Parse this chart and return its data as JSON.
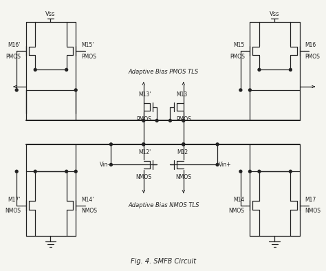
{
  "bg_color": "#f5f5f0",
  "line_color": "#555555",
  "dark_color": "#222222",
  "title": "Fig. 4. SMFB Circuit",
  "adaptive_pmos_label": "Adaptive Bias PMOS TLS",
  "adaptive_nmos_label": "Adaptive Bias NMOS TLS",
  "vss_label": "Vss",
  "vin_minus": "Vin-",
  "vin_plus": "Vin+",
  "font_size": 7,
  "small_font": 5.5
}
